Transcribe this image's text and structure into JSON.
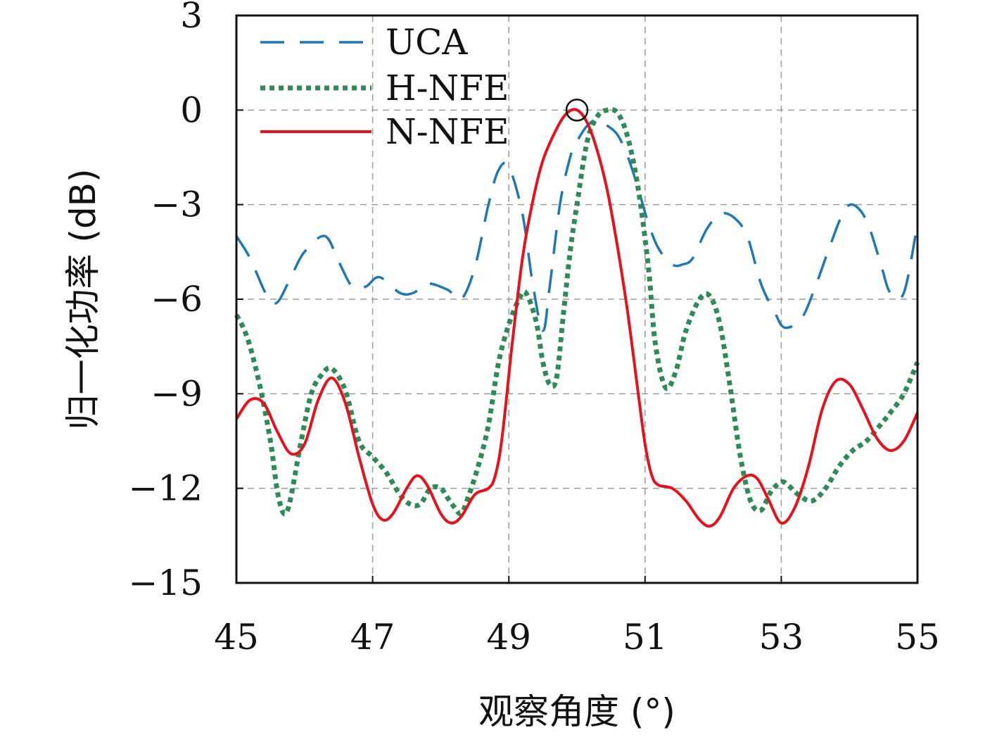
{
  "chart_data": {
    "type": "line",
    "xlabel": "观察角度 (°)",
    "ylabel": "归一化功率 (dB)",
    "xlim": [
      45,
      55
    ],
    "ylim": [
      -15,
      3
    ],
    "xticks": [
      45,
      47,
      49,
      51,
      53,
      55
    ],
    "yticks": [
      3,
      0,
      -3,
      -6,
      -9,
      -12,
      -15
    ],
    "xtick_labels": [
      "45",
      "47",
      "49",
      "51",
      "53",
      "55"
    ],
    "ytick_labels": [
      "3",
      "0",
      "−3",
      "−6",
      "−9",
      "−12",
      "−15"
    ],
    "grid": true,
    "legend_position": "top-left",
    "marker_point": {
      "x": 50.0,
      "y": 0,
      "shape": "circle"
    },
    "series": [
      {
        "name": "UCA",
        "color": "#1f77b4",
        "style": "dashed",
        "x": [
          45.0,
          45.2,
          45.45,
          45.6,
          45.8,
          46.0,
          46.3,
          46.5,
          46.7,
          46.9,
          47.1,
          47.4,
          47.6,
          47.8,
          48.1,
          48.3,
          48.5,
          48.7,
          48.85,
          49.0,
          49.2,
          49.35,
          49.5,
          49.6,
          49.75,
          49.9,
          50.0,
          50.15,
          50.3,
          50.45,
          50.6,
          50.75,
          50.9,
          51.05,
          51.2,
          51.4,
          51.55,
          51.7,
          51.9,
          52.1,
          52.3,
          52.5,
          52.7,
          52.9,
          53.05,
          53.3,
          53.5,
          53.7,
          53.9,
          54.05,
          54.25,
          54.45,
          54.6,
          54.8,
          55.0
        ],
        "y": [
          -4.0,
          -4.7,
          -5.9,
          -6.1,
          -5.3,
          -4.5,
          -4.0,
          -4.8,
          -5.6,
          -5.6,
          -5.3,
          -5.8,
          -5.8,
          -5.5,
          -5.7,
          -6.0,
          -5.0,
          -3.0,
          -1.9,
          -1.8,
          -3.3,
          -5.5,
          -7.0,
          -5.6,
          -3.0,
          -1.5,
          -1.0,
          -0.5,
          -0.3,
          -0.5,
          -0.8,
          -1.5,
          -2.5,
          -3.6,
          -4.4,
          -4.9,
          -4.9,
          -4.7,
          -3.8,
          -3.3,
          -3.4,
          -4.0,
          -5.5,
          -6.4,
          -6.9,
          -6.6,
          -5.6,
          -4.4,
          -3.3,
          -3.0,
          -3.5,
          -4.8,
          -5.8,
          -5.8,
          -3.6
        ]
      },
      {
        "name": "H-NFE",
        "color": "#2e8b57",
        "style": "dotted",
        "x": [
          45.0,
          45.1,
          45.2,
          45.35,
          45.5,
          45.62,
          45.75,
          45.95,
          46.1,
          46.25,
          46.4,
          46.6,
          46.8,
          47.0,
          47.2,
          47.4,
          47.55,
          47.7,
          47.85,
          48.0,
          48.1,
          48.2,
          48.3,
          48.4,
          48.55,
          48.7,
          48.85,
          49.0,
          49.15,
          49.25,
          49.4,
          49.5,
          49.6,
          49.7,
          49.8,
          49.9,
          50.0,
          50.15,
          50.3,
          50.45,
          50.6,
          50.75,
          50.9,
          51.05,
          51.15,
          51.3,
          51.45,
          51.6,
          51.8,
          51.95,
          52.1,
          52.25,
          52.4,
          52.55,
          52.7,
          52.85,
          53.0,
          53.1,
          53.25,
          53.45,
          53.65,
          53.85,
          54.05,
          54.25,
          54.45,
          54.6,
          54.8,
          55.0
        ],
        "y": [
          -6.5,
          -6.9,
          -7.5,
          -8.8,
          -10.5,
          -12.3,
          -12.7,
          -10.5,
          -9.0,
          -8.4,
          -8.2,
          -8.9,
          -10.5,
          -11.0,
          -11.5,
          -12.2,
          -12.5,
          -12.5,
          -12.0,
          -12.0,
          -12.3,
          -12.6,
          -12.8,
          -12.3,
          -11.3,
          -10.0,
          -8.0,
          -6.8,
          -6.0,
          -5.8,
          -6.7,
          -8.0,
          -8.7,
          -8.5,
          -6.5,
          -4.5,
          -3.0,
          -1.0,
          -0.2,
          0.0,
          -0.1,
          -0.9,
          -2.5,
          -5.0,
          -7.4,
          -8.8,
          -8.3,
          -7.0,
          -6.0,
          -5.9,
          -6.8,
          -8.8,
          -11.0,
          -12.4,
          -12.7,
          -12.1,
          -11.8,
          -11.9,
          -12.2,
          -12.4,
          -12.0,
          -11.3,
          -10.8,
          -10.5,
          -10.0,
          -9.6,
          -9.0,
          -8.0
        ]
      },
      {
        "name": "N-NFE",
        "color": "#e8101a",
        "style": "solid",
        "x": [
          45.0,
          45.2,
          45.4,
          45.6,
          45.8,
          46.0,
          46.2,
          46.4,
          46.6,
          46.8,
          47.0,
          47.15,
          47.3,
          47.5,
          47.65,
          47.8,
          48.0,
          48.15,
          48.3,
          48.5,
          48.7,
          48.8,
          48.9,
          49.05,
          49.2,
          49.35,
          49.5,
          49.7,
          49.85,
          50.0,
          50.15,
          50.3,
          50.45,
          50.6,
          50.75,
          50.9,
          51.0,
          51.1,
          51.2,
          51.4,
          51.6,
          51.8,
          51.95,
          52.1,
          52.3,
          52.5,
          52.65,
          52.8,
          53.0,
          53.2,
          53.4,
          53.6,
          53.8,
          54.0,
          54.2,
          54.4,
          54.6,
          54.8,
          55.0
        ],
        "y": [
          -9.8,
          -9.2,
          -9.3,
          -10.2,
          -10.9,
          -10.6,
          -9.2,
          -8.5,
          -9.3,
          -11.0,
          -12.5,
          -13.0,
          -12.8,
          -12.0,
          -11.6,
          -11.9,
          -12.8,
          -13.1,
          -12.9,
          -12.2,
          -12.0,
          -11.6,
          -10.4,
          -7.4,
          -4.7,
          -2.9,
          -1.6,
          -0.6,
          -0.1,
          0.0,
          -0.4,
          -1.3,
          -2.6,
          -4.4,
          -6.5,
          -9.0,
          -10.6,
          -11.6,
          -11.9,
          -12.0,
          -12.4,
          -13.0,
          -13.2,
          -12.9,
          -12.0,
          -11.6,
          -11.7,
          -12.3,
          -13.1,
          -12.6,
          -11.3,
          -9.5,
          -8.6,
          -8.7,
          -9.5,
          -10.4,
          -10.8,
          -10.5,
          -9.6
        ]
      }
    ]
  }
}
